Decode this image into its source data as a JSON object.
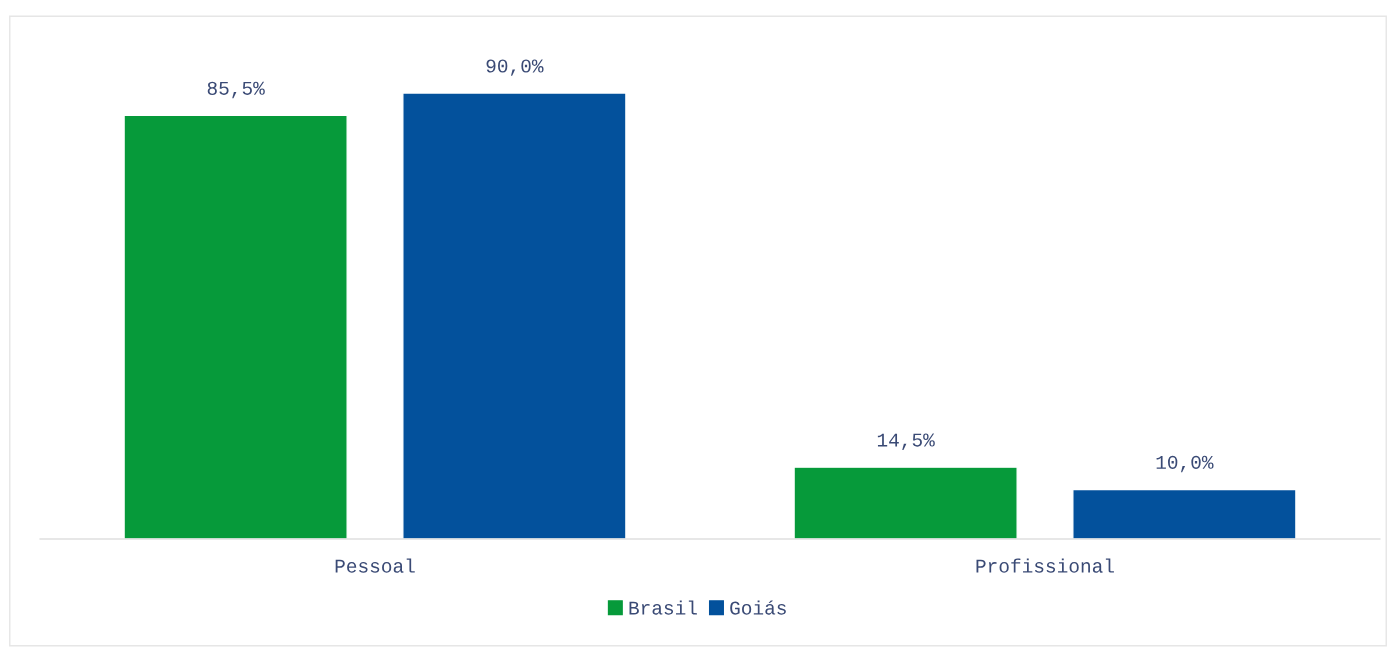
{
  "chart_data": {
    "type": "bar",
    "categories": [
      "Pessoal",
      "Profissional"
    ],
    "series": [
      {
        "name": "Brasil",
        "color": "#069a3a",
        "values": [
          85.5,
          14.5
        ],
        "value_labels": [
          "85,5%",
          "14,5%"
        ]
      },
      {
        "name": "Goiás",
        "color": "#03519c",
        "values": [
          90.0,
          10.0
        ],
        "value_labels": [
          "90,0%",
          "10,0%"
        ]
      }
    ],
    "legend": "bottom",
    "grid": false
  }
}
